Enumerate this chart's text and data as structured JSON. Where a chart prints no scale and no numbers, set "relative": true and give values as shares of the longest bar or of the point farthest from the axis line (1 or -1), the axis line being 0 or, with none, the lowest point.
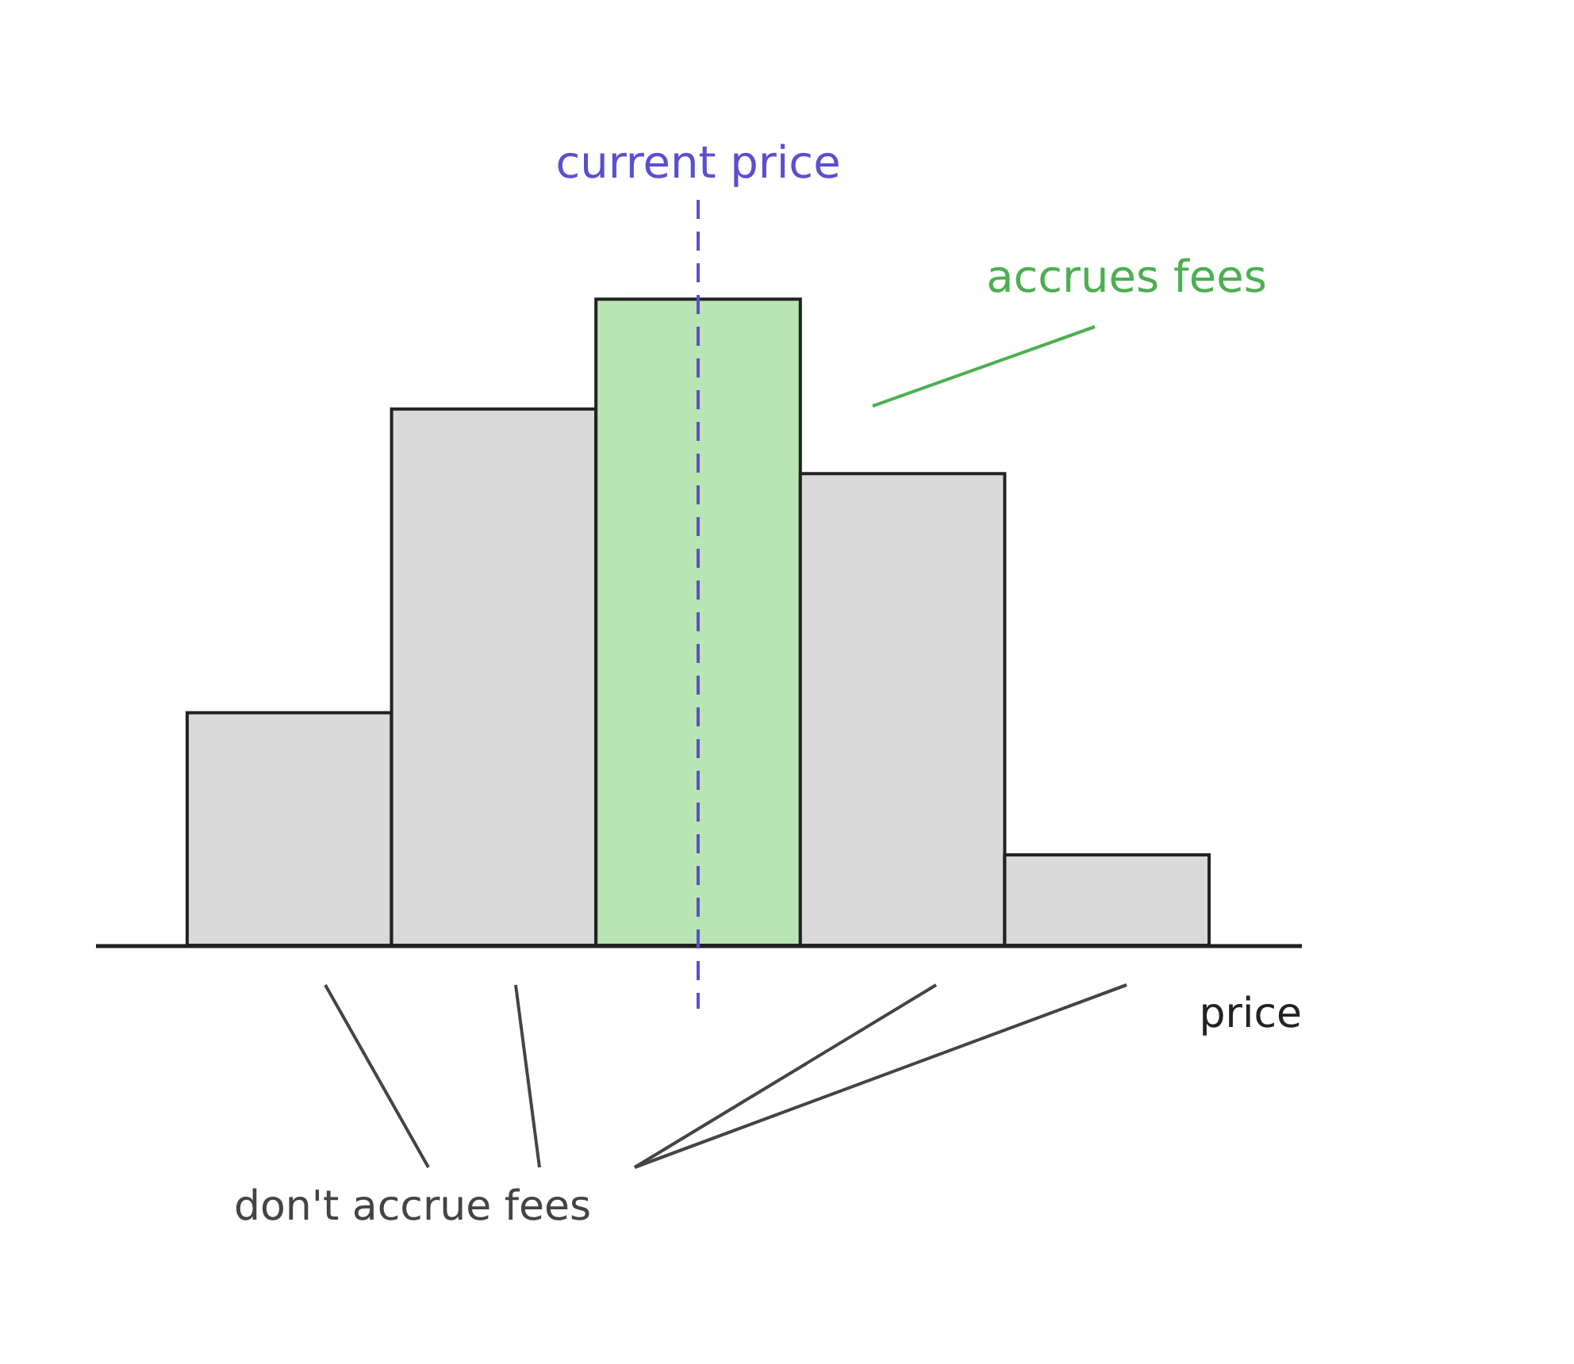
{
  "chart_data": {
    "type": "bar",
    "relative": true,
    "categories": [
      null,
      null,
      null,
      null,
      null
    ],
    "values": [
      0.36,
      0.83,
      1,
      0.73,
      0.14
    ],
    "colors": [
      "#d9d9d9",
      "#d9d9d9",
      "#b9e4b3",
      "#d9d9d9",
      "#d9d9d9"
    ],
    "xlabel": "price",
    "ref_lines": [
      {
        "axis": "x",
        "label": "current price",
        "color": "#5b4fcf",
        "line_style": "dashed"
      }
    ],
    "annotations": [
      "accrues fees",
      "don't accrue fees"
    ],
    "grid": false,
    "tick_labels": false
  }
}
